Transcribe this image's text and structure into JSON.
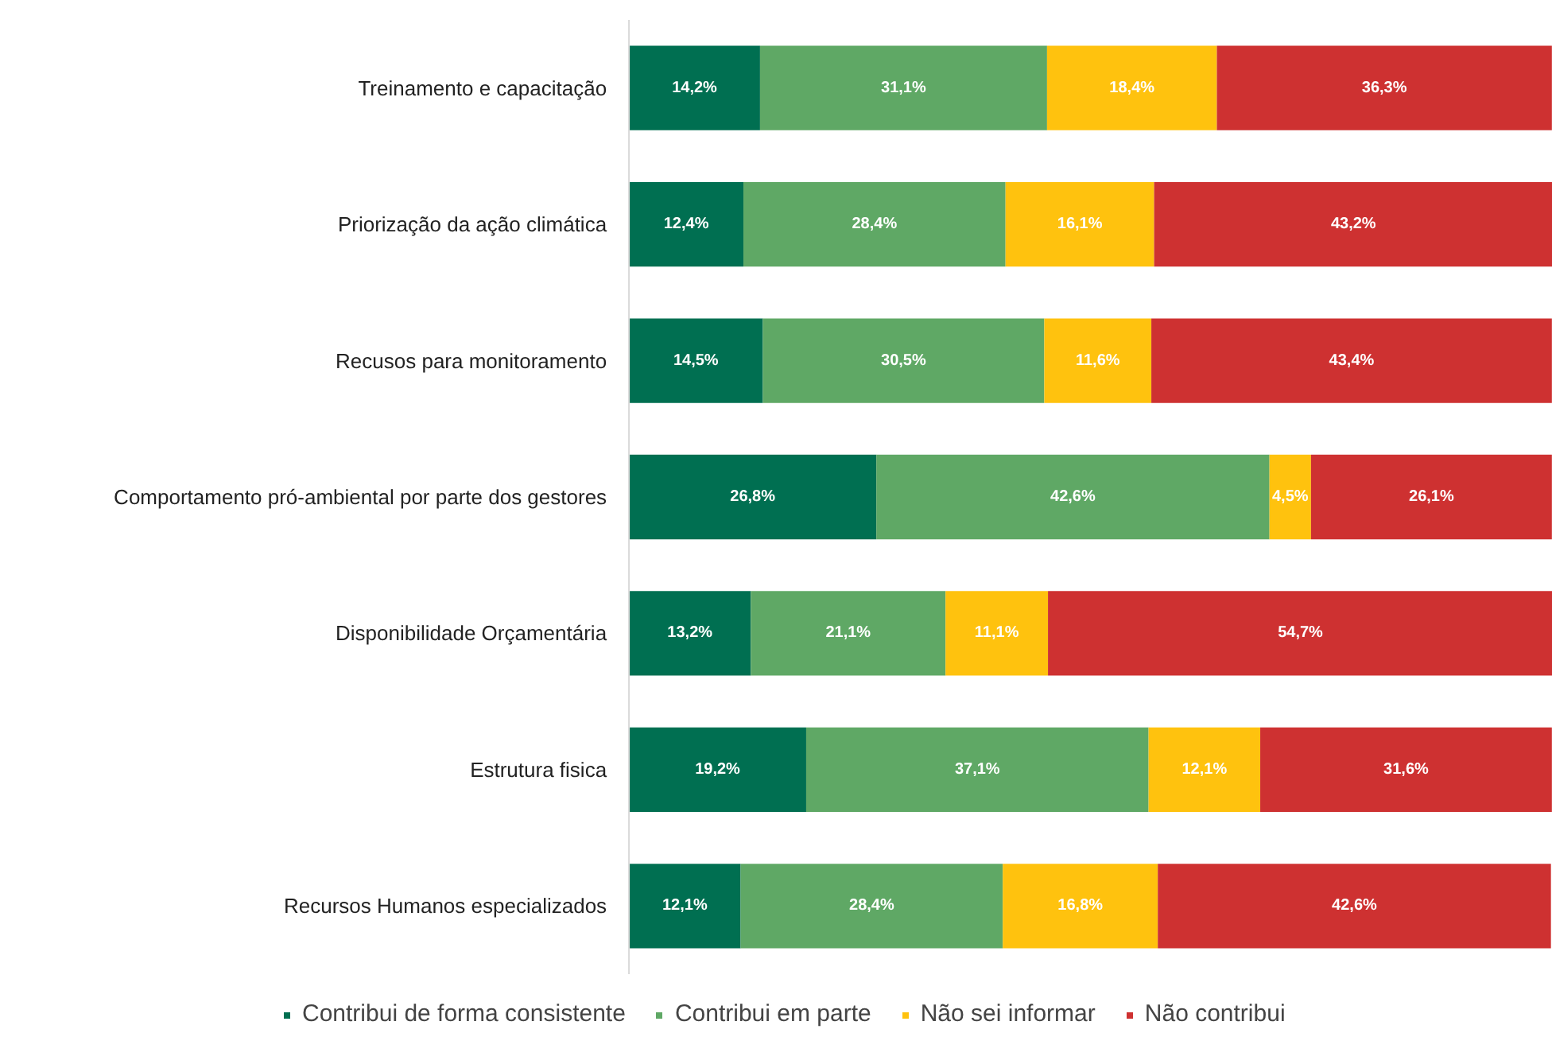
{
  "chart_data": {
    "type": "bar",
    "orientation": "horizontal",
    "stacked": true,
    "legend": "bottom",
    "grid": false,
    "categories": [
      "Treinamento e capacitação",
      "Priorização da ação climática",
      "Recusos para monitoramento",
      "Comportamento pró-ambiental por parte dos gestores",
      "Disponibilidade Orçamentária",
      "Estrutura fisica",
      "Recursos Humanos especializados"
    ],
    "series": [
      {
        "name": "Contribui de forma consistente",
        "color": "#006f51",
        "values": [
          14.2,
          12.4,
          14.5,
          26.8,
          13.2,
          19.2,
          12.1
        ],
        "value_labels": [
          "14,2%",
          "12,4%",
          "14,5%",
          "26,8%",
          "13,2%",
          "19,2%",
          "12,1%"
        ]
      },
      {
        "name": "Contribui em parte",
        "color": "#5fa865",
        "values": [
          31.1,
          28.4,
          30.5,
          42.6,
          21.1,
          37.1,
          28.4
        ],
        "value_labels": [
          "31,1%",
          "28,4%",
          "30,5%",
          "42,6%",
          "21,1%",
          "37,1%",
          "28,4%"
        ]
      },
      {
        "name": "Não sei informar",
        "color": "#ffc20e",
        "values": [
          18.4,
          16.1,
          11.6,
          4.5,
          11.1,
          12.1,
          16.8
        ],
        "value_labels": [
          "18,4%",
          "16,1%",
          "11,6%",
          "4,5%",
          "11,1%",
          "12,1%",
          "16,8%"
        ]
      },
      {
        "name": "Não contribui",
        "color": "#ce3131",
        "values": [
          36.3,
          43.2,
          43.4,
          26.1,
          54.7,
          31.6,
          42.6
        ],
        "value_labels": [
          "36,3%",
          "43,2%",
          "43,4%",
          "26,1%",
          "54,7%",
          "31,6%",
          "42,6%"
        ]
      }
    ]
  }
}
